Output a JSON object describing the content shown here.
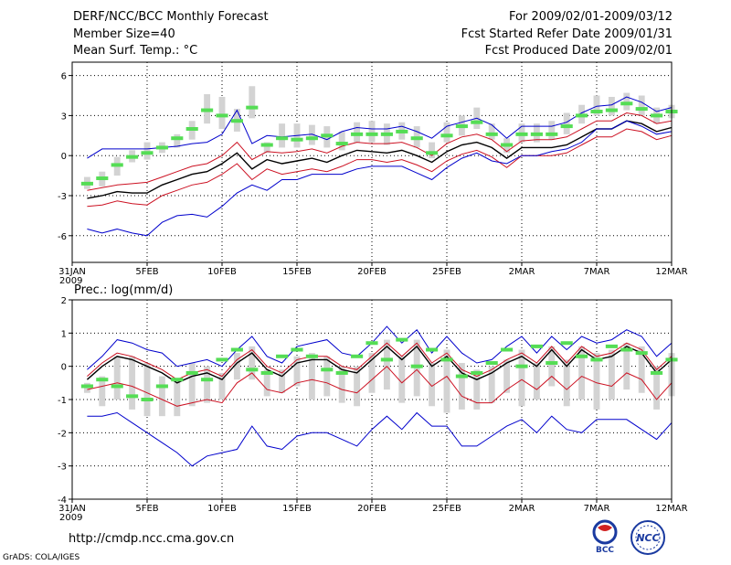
{
  "header": {
    "title": "DERF/NCC/BCC Monthly Forecast",
    "member": "Member Size=40",
    "variable": "Mean Surf. Temp.: °C",
    "period": "For 2009/02/01-2009/03/12",
    "started": "Fcst Started Refer Date 2009/01/31",
    "produced": "Fcst Produced Date 2009/02/01"
  },
  "footer": {
    "url": "http://cmdp.ncc.cma.gov.cn",
    "grads": "GrADS: COLA/IGES",
    "logo_left_text": "BCC",
    "logo_right_text": "NCC"
  },
  "colors": {
    "ensemble_box": "#d3d3d3",
    "member_dash": "#55dd55",
    "mean_line": "#000000",
    "inner_band": "#cc1122",
    "outer_band": "#0000cc",
    "grid": "#000000"
  },
  "chart_data": [
    {
      "type": "line",
      "title": "Mean Surf. Temp.: °C",
      "x_ticks": [
        "31JAN",
        "5FEB",
        "10FEB",
        "15FEB",
        "20FEB",
        "25FEB",
        "2MAR",
        "7MAR",
        "12MAR"
      ],
      "x_tick_days": [
        0,
        5,
        10,
        15,
        20,
        25,
        30,
        35,
        40
      ],
      "year_label": "2009",
      "xlim": [
        0,
        40
      ],
      "ylim": [
        -8,
        7
      ],
      "y_ticks": [
        -6,
        -3,
        0,
        3,
        6
      ],
      "days": [
        1,
        2,
        3,
        4,
        5,
        6,
        7,
        8,
        9,
        10,
        11,
        12,
        13,
        14,
        15,
        16,
        17,
        18,
        19,
        20,
        21,
        22,
        23,
        24,
        25,
        26,
        27,
        28,
        29,
        30,
        31,
        32,
        33,
        34,
        35,
        36,
        37,
        38,
        39,
        40
      ],
      "series": [
        {
          "name": "mean",
          "values": [
            -3.2,
            -3.0,
            -2.7,
            -2.8,
            -2.8,
            -2.2,
            -1.8,
            -1.4,
            -1.2,
            -0.6,
            0.2,
            -1.0,
            -0.3,
            -0.6,
            -0.4,
            -0.2,
            -0.5,
            0.0,
            0.4,
            0.3,
            0.2,
            0.4,
            0.0,
            -0.5,
            0.3,
            0.8,
            1.0,
            0.6,
            -0.2,
            0.6,
            0.6,
            0.6,
            0.8,
            1.4,
            2.0,
            2.0,
            2.6,
            2.4,
            1.8,
            2.1
          ]
        },
        {
          "name": "upper_inner",
          "values": [
            -2.6,
            -2.4,
            -2.2,
            -2.1,
            -2.0,
            -1.6,
            -1.2,
            -0.8,
            -0.6,
            0.0,
            1.0,
            -0.3,
            0.3,
            0.2,
            0.3,
            0.5,
            0.2,
            0.7,
            1.0,
            0.9,
            0.9,
            1.0,
            0.6,
            0.0,
            0.9,
            1.4,
            1.6,
            1.2,
            0.3,
            1.1,
            1.2,
            1.2,
            1.4,
            2.0,
            2.6,
            2.6,
            3.2,
            3.0,
            2.4,
            2.6
          ]
        },
        {
          "name": "lower_inner",
          "values": [
            -3.8,
            -3.7,
            -3.4,
            -3.6,
            -3.7,
            -3.0,
            -2.6,
            -2.2,
            -2.0,
            -1.4,
            -0.6,
            -1.8,
            -1.0,
            -1.4,
            -1.2,
            -1.0,
            -1.2,
            -0.8,
            -0.3,
            -0.3,
            -0.5,
            -0.3,
            -0.7,
            -1.2,
            -0.4,
            0.1,
            0.4,
            -0.1,
            -0.9,
            0.0,
            0.0,
            0.0,
            0.2,
            0.8,
            1.4,
            1.4,
            2.0,
            1.8,
            1.2,
            1.5
          ]
        },
        {
          "name": "upper_outer",
          "values": [
            -0.2,
            0.5,
            0.5,
            0.5,
            0.5,
            0.6,
            0.7,
            0.9,
            1.0,
            1.6,
            3.4,
            0.9,
            1.5,
            1.4,
            1.5,
            1.6,
            1.2,
            1.8,
            2.1,
            2.0,
            2.0,
            2.2,
            1.8,
            1.3,
            2.2,
            2.5,
            2.8,
            2.3,
            1.3,
            2.2,
            2.2,
            2.2,
            2.5,
            3.2,
            3.7,
            3.8,
            4.4,
            4.0,
            3.3,
            3.6
          ]
        },
        {
          "name": "lower_outer",
          "values": [
            -5.5,
            -5.8,
            -5.5,
            -5.8,
            -6.0,
            -5.0,
            -4.5,
            -4.4,
            -4.6,
            -3.8,
            -2.8,
            -2.2,
            -2.6,
            -1.8,
            -1.8,
            -1.4,
            -1.4,
            -1.4,
            -1.0,
            -0.8,
            -0.8,
            -0.8,
            -1.3,
            -1.8,
            -0.9,
            -0.2,
            0.2,
            -0.4,
            -0.6,
            0.0,
            0.0,
            0.3,
            0.5,
            1.0,
            2.0,
            2.0,
            2.6,
            2.2,
            1.6,
            1.8
          ]
        }
      ],
      "box_top": [
        -1.6,
        -1.2,
        -0.1,
        0.4,
        1.0,
        1.0,
        1.6,
        2.6,
        4.6,
        4.4,
        3.5,
        5.2,
        1.0,
        2.4,
        2.4,
        2.3,
        2.2,
        1.8,
        2.5,
        2.6,
        2.4,
        2.5,
        2.2,
        1.0,
        2.5,
        3.0,
        3.6,
        2.4,
        1.3,
        2.4,
        2.4,
        2.6,
        3.2,
        3.8,
        4.5,
        4.4,
        4.7,
        4.5,
        3.6,
        3.8
      ],
      "box_bottom": [
        -2.5,
        -2.3,
        -1.5,
        -0.5,
        -0.3,
        0.2,
        0.6,
        1.2,
        2.4,
        2.0,
        1.8,
        2.8,
        0.2,
        0.6,
        0.6,
        0.8,
        0.6,
        0.4,
        1.0,
        1.0,
        0.8,
        1.2,
        0.6,
        -0.2,
        1.0,
        1.5,
        2.0,
        1.2,
        0.2,
        1.0,
        1.0,
        1.2,
        1.6,
        2.4,
        3.0,
        3.0,
        3.4,
        3.0,
        2.4,
        2.8
      ],
      "member_marks": [
        -2.1,
        -1.7,
        -0.7,
        -0.1,
        0.2,
        0.6,
        1.3,
        2.0,
        3.4,
        3.0,
        2.6,
        3.6,
        0.8,
        1.3,
        1.2,
        1.3,
        1.5,
        0.9,
        1.6,
        1.6,
        1.6,
        1.8,
        1.3,
        0.2,
        1.5,
        2.2,
        2.5,
        1.6,
        0.8,
        1.6,
        1.6,
        1.6,
        2.2,
        3.0,
        3.3,
        3.4,
        3.9,
        3.5,
        3.0,
        3.3
      ]
    },
    {
      "type": "line",
      "title": "Prec.: log(mm/d)",
      "x_ticks": [
        "31JAN",
        "5FEB",
        "10FEB",
        "15FEB",
        "20FEB",
        "25FEB",
        "2MAR",
        "7MAR",
        "12MAR"
      ],
      "x_tick_days": [
        0,
        5,
        10,
        15,
        20,
        25,
        30,
        35,
        40
      ],
      "year_label": "2009",
      "xlim": [
        0,
        40
      ],
      "ylim": [
        -4,
        2
      ],
      "y_ticks": [
        -4,
        -3,
        -2,
        -1,
        0,
        1,
        2
      ],
      "days": [
        1,
        2,
        3,
        4,
        5,
        6,
        7,
        8,
        9,
        10,
        11,
        12,
        13,
        14,
        15,
        16,
        17,
        18,
        19,
        20,
        21,
        22,
        23,
        24,
        25,
        26,
        27,
        28,
        29,
        30,
        31,
        32,
        33,
        34,
        35,
        36,
        37,
        38,
        39,
        40
      ],
      "series": [
        {
          "name": "mean",
          "values": [
            -0.4,
            0.0,
            0.3,
            0.2,
            0.0,
            -0.2,
            -0.5,
            -0.3,
            -0.2,
            -0.4,
            0.1,
            0.4,
            -0.1,
            -0.3,
            0.1,
            0.2,
            0.2,
            -0.1,
            -0.2,
            0.2,
            0.6,
            0.2,
            0.6,
            0.0,
            0.3,
            -0.2,
            -0.4,
            -0.2,
            0.1,
            0.3,
            0.0,
            0.5,
            0.0,
            0.5,
            0.2,
            0.3,
            0.6,
            0.4,
            -0.2,
            0.2
          ]
        },
        {
          "name": "upper_inner",
          "values": [
            -0.3,
            0.1,
            0.4,
            0.3,
            0.1,
            -0.1,
            -0.4,
            -0.2,
            -0.1,
            -0.3,
            0.2,
            0.5,
            0.0,
            -0.2,
            0.2,
            0.3,
            0.3,
            0.0,
            -0.1,
            0.3,
            0.7,
            0.3,
            0.7,
            0.1,
            0.4,
            -0.1,
            -0.3,
            -0.1,
            0.2,
            0.4,
            0.1,
            0.6,
            0.1,
            0.6,
            0.3,
            0.4,
            0.7,
            0.5,
            -0.1,
            0.3
          ]
        },
        {
          "name": "lower_inner",
          "values": [
            -0.7,
            -0.6,
            -0.5,
            -0.6,
            -0.8,
            -1.0,
            -1.2,
            -1.1,
            -1.0,
            -1.1,
            -0.5,
            -0.2,
            -0.7,
            -0.8,
            -0.5,
            -0.4,
            -0.5,
            -0.7,
            -0.8,
            -0.4,
            0.0,
            -0.5,
            -0.1,
            -0.6,
            -0.3,
            -0.9,
            -1.1,
            -1.1,
            -0.7,
            -0.4,
            -0.7,
            -0.3,
            -0.7,
            -0.3,
            -0.5,
            -0.6,
            -0.2,
            -0.4,
            -1.0,
            -0.5
          ]
        },
        {
          "name": "upper_outer",
          "values": [
            -0.1,
            0.3,
            0.8,
            0.7,
            0.5,
            0.4,
            0.0,
            0.1,
            0.2,
            0.0,
            0.5,
            0.9,
            0.3,
            0.1,
            0.6,
            0.7,
            0.8,
            0.4,
            0.3,
            0.7,
            1.2,
            0.7,
            1.1,
            0.4,
            0.9,
            0.4,
            0.1,
            0.2,
            0.6,
            0.9,
            0.4,
            0.9,
            0.5,
            0.9,
            0.7,
            0.8,
            1.1,
            0.9,
            0.3,
            0.7
          ]
        },
        {
          "name": "lower_outer",
          "values": [
            -1.5,
            -1.5,
            -1.4,
            -1.7,
            -2.0,
            -2.3,
            -2.6,
            -3.0,
            -2.7,
            -2.6,
            -2.5,
            -1.8,
            -2.4,
            -2.5,
            -2.1,
            -2.0,
            -2.0,
            -2.2,
            -2.4,
            -1.9,
            -1.5,
            -1.9,
            -1.4,
            -1.8,
            -1.8,
            -2.4,
            -2.4,
            -2.1,
            -1.8,
            -1.6,
            -2.0,
            -1.5,
            -1.9,
            -2.0,
            -1.6,
            -1.6,
            -1.6,
            -1.9,
            -2.2,
            -1.7
          ]
        }
      ],
      "box_top": [
        -0.5,
        -0.3,
        0.3,
        0.3,
        0.1,
        -0.3,
        -0.4,
        0.1,
        0.0,
        -0.2,
        0.4,
        0.6,
        -0.1,
        -0.1,
        0.3,
        0.4,
        0.3,
        0.0,
        0.0,
        0.4,
        0.8,
        0.3,
        0.8,
        0.1,
        0.5,
        0.1,
        -0.1,
        0.0,
        0.2,
        0.5,
        0.1,
        0.6,
        0.2,
        0.6,
        0.4,
        0.5,
        0.7,
        0.6,
        0.0,
        0.4
      ],
      "box_bottom": [
        -0.8,
        -1.2,
        -1.0,
        -1.3,
        -1.5,
        -1.5,
        -1.5,
        -1.2,
        -1.1,
        -1.0,
        -0.4,
        -0.4,
        -0.9,
        -0.8,
        -0.6,
        -1.0,
        -0.9,
        -1.1,
        -1.2,
        -0.8,
        -0.7,
        -1.1,
        -0.9,
        -1.2,
        -1.4,
        -1.3,
        -1.3,
        -1.1,
        -0.8,
        -1.2,
        -1.0,
        -0.6,
        -1.2,
        -1.0,
        -1.3,
        -1.0,
        -0.7,
        -0.8,
        -1.3,
        -0.9
      ],
      "member_marks": [
        -0.6,
        -0.4,
        -0.6,
        -0.9,
        -1.0,
        -0.6,
        -0.4,
        -0.2,
        -0.4,
        0.2,
        0.5,
        -0.1,
        -0.2,
        0.3,
        0.5,
        0.3,
        -0.1,
        -0.2,
        0.3,
        0.7,
        0.2,
        0.8,
        0.0,
        0.5,
        0.2,
        -0.3,
        -0.2,
        0.1,
        0.5,
        0.0,
        0.6,
        0.1,
        0.7,
        0.3,
        0.2,
        0.6,
        0.5,
        0.4,
        -0.2,
        0.2
      ]
    }
  ]
}
